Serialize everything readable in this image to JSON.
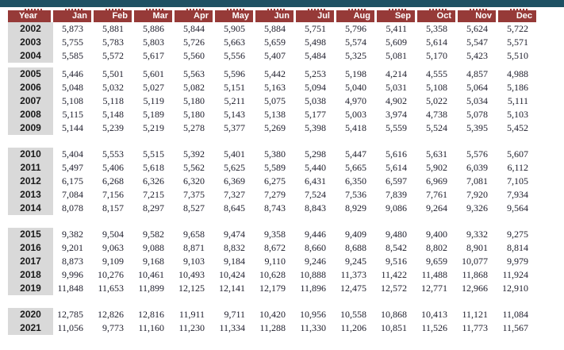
{
  "topbar": {
    "color": "#1e5163"
  },
  "table": {
    "colors": {
      "header_bg": "#963a38",
      "header_text": "#ffffff",
      "year_cell_bg": "#d9d9d9",
      "value_text": "#20202e"
    },
    "header": {
      "year_label": "Year",
      "months": [
        "Jan",
        "Feb",
        "Mar",
        "Apr",
        "May",
        "Jun",
        "Jul",
        "Aug",
        "Sep",
        "Oct",
        "Nov",
        "Dec"
      ]
    },
    "groups": [
      {
        "rows": [
          {
            "year": "2002",
            "values": [
              "5,873",
              "5,881",
              "5,886",
              "5,844",
              "5,905",
              "5,884",
              "5,751",
              "5,796",
              "5,411",
              "5,358",
              "5,624",
              "5,722"
            ]
          },
          {
            "year": "2003",
            "values": [
              "5,755",
              "5,783",
              "5,803",
              "5,726",
              "5,663",
              "5,659",
              "5,498",
              "5,574",
              "5,609",
              "5,614",
              "5,547",
              "5,571"
            ]
          },
          {
            "year": "2004",
            "values": [
              "5,585",
              "5,572",
              "5,617",
              "5,560",
              "5,556",
              "5,407",
              "5,484",
              "5,325",
              "5,081",
              "5,170",
              "5,423",
              "5,510"
            ]
          }
        ]
      },
      {
        "rows": [
          {
            "year": "2005",
            "values": [
              "5,446",
              "5,501",
              "5,601",
              "5,563",
              "5,596",
              "5,442",
              "5,253",
              "5,198",
              "4,214",
              "4,555",
              "4,857",
              "4,988"
            ]
          },
          {
            "year": "2006",
            "values": [
              "5,048",
              "5,032",
              "5,027",
              "5,082",
              "5,151",
              "5,163",
              "5,094",
              "5,040",
              "5,031",
              "5,108",
              "5,064",
              "5,186"
            ]
          },
          {
            "year": "2007",
            "values": [
              "5,108",
              "5,118",
              "5,119",
              "5,180",
              "5,211",
              "5,075",
              "5,038",
              "4,970",
              "4,902",
              "5,022",
              "5,034",
              "5,111"
            ]
          },
          {
            "year": "2008",
            "values": [
              "5,115",
              "5,148",
              "5,189",
              "5,180",
              "5,143",
              "5,138",
              "5,177",
              "5,003",
              "3,974",
              "4,738",
              "5,078",
              "5,103"
            ]
          },
          {
            "year": "2009",
            "values": [
              "5,144",
              "5,239",
              "5,219",
              "5,278",
              "5,377",
              "5,269",
              "5,398",
              "5,418",
              "5,559",
              "5,524",
              "5,395",
              "5,452"
            ]
          }
        ]
      },
      {
        "rows": [
          {
            "year": "2010",
            "values": [
              "5,404",
              "5,553",
              "5,515",
              "5,392",
              "5,401",
              "5,380",
              "5,298",
              "5,447",
              "5,616",
              "5,631",
              "5,576",
              "5,607"
            ]
          },
          {
            "year": "2011",
            "values": [
              "5,497",
              "5,406",
              "5,618",
              "5,562",
              "5,625",
              "5,589",
              "5,440",
              "5,665",
              "5,614",
              "5,902",
              "6,039",
              "6,112"
            ]
          },
          {
            "year": "2012",
            "values": [
              "6,175",
              "6,268",
              "6,326",
              "6,320",
              "6,369",
              "6,275",
              "6,431",
              "6,350",
              "6,597",
              "6,969",
              "7,081",
              "7,105"
            ]
          },
          {
            "year": "2013",
            "values": [
              "7,084",
              "7,156",
              "7,215",
              "7,375",
              "7,327",
              "7,279",
              "7,524",
              "7,536",
              "7,839",
              "7,761",
              "7,920",
              "7,934"
            ]
          },
          {
            "year": "2014",
            "values": [
              "8,078",
              "8,157",
              "8,297",
              "8,527",
              "8,645",
              "8,743",
              "8,843",
              "8,929",
              "9,086",
              "9,264",
              "9,326",
              "9,564"
            ]
          }
        ]
      },
      {
        "rows": [
          {
            "year": "2015",
            "values": [
              "9,382",
              "9,504",
              "9,582",
              "9,658",
              "9,474",
              "9,358",
              "9,446",
              "9,409",
              "9,480",
              "9,400",
              "9,332",
              "9,275"
            ]
          },
          {
            "year": "2016",
            "values": [
              "9,201",
              "9,063",
              "9,088",
              "8,871",
              "8,832",
              "8,672",
              "8,660",
              "8,688",
              "8,542",
              "8,802",
              "8,901",
              "8,814"
            ]
          },
          {
            "year": "2017",
            "values": [
              "8,873",
              "9,109",
              "9,168",
              "9,103",
              "9,184",
              "9,110",
              "9,246",
              "9,245",
              "9,516",
              "9,659",
              "10,077",
              "9,979"
            ]
          },
          {
            "year": "2018",
            "values": [
              "9,996",
              "10,276",
              "10,461",
              "10,493",
              "10,424",
              "10,628",
              "10,888",
              "11,373",
              "11,422",
              "11,488",
              "11,868",
              "11,924"
            ]
          },
          {
            "year": "2019",
            "values": [
              "11,848",
              "11,653",
              "11,899",
              "12,125",
              "12,141",
              "12,179",
              "11,896",
              "12,475",
              "12,572",
              "12,771",
              "12,966",
              "12,910"
            ]
          }
        ]
      },
      {
        "rows": [
          {
            "year": "2020",
            "values": [
              "12,785",
              "12,826",
              "12,816",
              "11,911",
              "9,711",
              "10,420",
              "10,956",
              "10,558",
              "10,868",
              "10,413",
              "11,121",
              "11,084"
            ]
          },
          {
            "year": "2021",
            "values": [
              "11,056",
              "9,773",
              "11,160",
              "11,230",
              "11,334",
              "11,288",
              "11,330",
              "11,206",
              "10,851",
              "11,526",
              "11,773",
              "11,567"
            ]
          }
        ]
      }
    ]
  }
}
